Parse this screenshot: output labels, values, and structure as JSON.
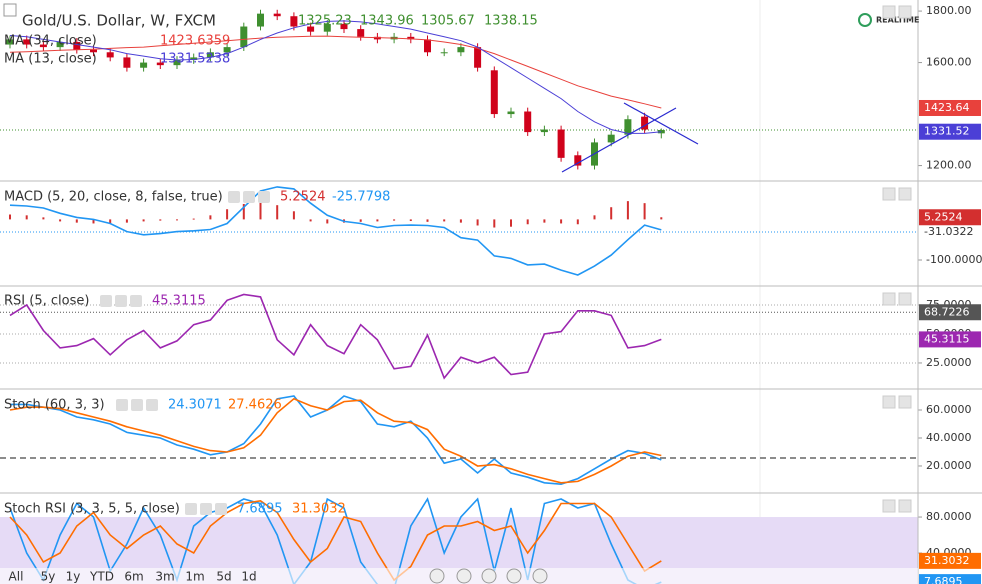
{
  "badge": "REALTIME",
  "toolbar": {
    "ranges": [
      "All",
      "5y",
      "1y",
      "YTD",
      "6m",
      "3m",
      "1m",
      "5d",
      "1d"
    ]
  },
  "chart_data": [
    {
      "type": "candlestick",
      "title": "Gold/U.S. Dollar, W, FXCM",
      "open": [
        1670,
        1690,
        1670,
        1660,
        1680,
        1650,
        1640,
        1620,
        1580,
        1600,
        1590,
        1610,
        1620,
        1640,
        1660,
        1740,
        1790,
        1780,
        1740,
        1720,
        1750,
        1730,
        1700,
        1690,
        1700,
        1690,
        1640,
        1640,
        1660,
        1570,
        1400,
        1410,
        1330,
        1340,
        1240,
        1200,
        1290,
        1320,
        1390,
        1325.23
      ],
      "high": [
        1705,
        1705,
        1685,
        1695,
        1695,
        1665,
        1655,
        1635,
        1615,
        1615,
        1625,
        1635,
        1655,
        1675,
        1755,
        1805,
        1805,
        1795,
        1755,
        1765,
        1765,
        1745,
        1715,
        1715,
        1715,
        1705,
        1655,
        1675,
        1675,
        1585,
        1425,
        1425,
        1355,
        1355,
        1255,
        1305,
        1335,
        1395,
        1405,
        1343.96
      ],
      "low": [
        1655,
        1655,
        1645,
        1645,
        1635,
        1625,
        1605,
        1565,
        1565,
        1575,
        1575,
        1595,
        1605,
        1625,
        1645,
        1725,
        1765,
        1725,
        1705,
        1705,
        1715,
        1685,
        1675,
        1675,
        1675,
        1625,
        1625,
        1625,
        1565,
        1385,
        1385,
        1315,
        1315,
        1215,
        1185,
        1185,
        1275,
        1305,
        1325,
        1305.67
      ],
      "close": [
        1690,
        1670,
        1660,
        1680,
        1650,
        1640,
        1620,
        1580,
        1600,
        1590,
        1610,
        1620,
        1640,
        1660,
        1740,
        1790,
        1780,
        1740,
        1720,
        1750,
        1730,
        1700,
        1690,
        1700,
        1690,
        1640,
        1640,
        1660,
        1580,
        1400,
        1410,
        1330,
        1340,
        1230,
        1200,
        1290,
        1320,
        1380,
        1340,
        1338.15
      ],
      "up_color": "#3f8f2f",
      "down_color": "#d0021b",
      "ylim": [
        1144,
        1843
      ],
      "yticks": [
        {
          "value": 1800,
          "label": "1800.00"
        },
        {
          "value": 1600,
          "label": "1600.00"
        },
        {
          "value": 1200,
          "label": "1200.00"
        }
      ],
      "series": [
        {
          "name": "MA (34, close)",
          "color": "#e8413c",
          "tag": true,
          "last_label": "1423.64",
          "values": [
            1640,
            1642,
            1645,
            1648,
            1650,
            1652,
            1655,
            1658,
            1660,
            1665,
            1670,
            1675,
            1680,
            1685,
            1690,
            1695,
            1698,
            1700,
            1702,
            1703,
            1700,
            1698,
            1697,
            1695,
            1692,
            1688,
            1680,
            1670,
            1655,
            1635,
            1610,
            1585,
            1560,
            1535,
            1510,
            1490,
            1470,
            1455,
            1440,
            1423.6359
          ]
        },
        {
          "name": "MA (13, close)",
          "color": "#4b3fd6",
          "tag": true,
          "last_label": "1331.52",
          "values": [
            1705,
            1700,
            1690,
            1680,
            1670,
            1660,
            1650,
            1635,
            1625,
            1615,
            1610,
            1612,
            1620,
            1635,
            1660,
            1690,
            1715,
            1735,
            1750,
            1760,
            1762,
            1758,
            1750,
            1740,
            1730,
            1715,
            1700,
            1685,
            1660,
            1620,
            1580,
            1540,
            1500,
            1460,
            1410,
            1370,
            1340,
            1325,
            1325,
            1331.5238
          ]
        }
      ]
    },
    {
      "type": "macd",
      "title": "MACD (5, 20, close, 8, false, true)",
      "ylim": [
        -161.6,
        92.1
      ],
      "yticks": [
        {
          "value": -100,
          "label": "-100.0000"
        }
      ],
      "ref_value": -31.0322,
      "series": [
        {
          "kind": "histogram",
          "color": "#d32f2f",
          "tag": true,
          "values": [
            12,
            10,
            5,
            -5,
            -8,
            -10,
            -10,
            -8,
            -5,
            -3,
            -2,
            2,
            10,
            25,
            38,
            42,
            35,
            20,
            -5,
            -10,
            -8,
            -6,
            -5,
            -3,
            -4,
            -6,
            -5,
            -8,
            -15,
            -20,
            -18,
            -12,
            -8,
            -10,
            -12,
            10,
            30,
            45,
            40,
            5.2524
          ]
        },
        {
          "kind": "line",
          "color": "#2196f3",
          "values": [
            35,
            33,
            28,
            15,
            5,
            0,
            -10,
            -30,
            -38,
            -35,
            -30,
            -28,
            -25,
            -10,
            30,
            70,
            80,
            75,
            40,
            10,
            -5,
            -10,
            -20,
            -15,
            -14,
            -15,
            -20,
            -45,
            -51,
            -90,
            -96,
            -112,
            -110,
            -125,
            -137,
            -115,
            -88,
            -50,
            -14,
            -25.7798
          ]
        }
      ]
    },
    {
      "type": "line",
      "title": "RSI (5, close)",
      "ylim": [
        3.4,
        90.5
      ],
      "grid": true,
      "yticks": [
        {
          "value": 25,
          "label": "25.0000"
        },
        {
          "value": 50,
          "label": "50.0000"
        },
        {
          "value": 75,
          "label": "75.0000"
        }
      ],
      "ref_value": 68.7226,
      "ref_color": "#555555",
      "series": [
        {
          "color": "#9c27b0",
          "tag": true,
          "values": [
            66,
            75,
            53,
            38,
            40,
            46,
            32,
            45,
            53,
            38,
            44,
            58,
            62,
            79,
            84,
            82,
            45,
            32,
            58,
            40,
            33,
            58,
            45,
            20,
            22,
            49,
            12,
            30,
            25,
            30,
            15,
            17,
            50,
            52,
            70,
            70,
            66,
            38,
            40,
            45.3115
          ]
        }
      ]
    },
    {
      "type": "line",
      "title": "Stoch (60, 3, 3)",
      "ylim": [
        1.4,
        74.3
      ],
      "yticks": [
        {
          "value": 20,
          "label": "20.0000"
        },
        {
          "value": 40,
          "label": "40.0000"
        },
        {
          "value": 60,
          "label": "60.0000"
        }
      ],
      "series": [
        {
          "color": "#2196f3",
          "values": [
            64,
            64,
            62,
            60,
            55,
            53,
            50,
            44,
            42,
            40,
            35,
            32,
            28,
            30,
            36,
            50,
            68,
            70,
            55,
            60,
            70,
            66,
            50,
            48,
            52,
            40,
            22,
            25,
            15,
            25,
            15,
            12,
            8,
            7,
            11,
            18,
            25,
            31,
            29,
            24.3071
          ]
        },
        {
          "color": "#ff6d00",
          "values": [
            60,
            62,
            62,
            61,
            58,
            55,
            52,
            48,
            45,
            42,
            38,
            34,
            31,
            30,
            33,
            42,
            58,
            68,
            63,
            60,
            66,
            67,
            58,
            52,
            51,
            46,
            32,
            27,
            20,
            21,
            18,
            14,
            11,
            8,
            9,
            14,
            20,
            27,
            30,
            27.4626
          ]
        }
      ]
    },
    {
      "type": "line",
      "title": "Stoch RSI (3, 3, 5, 5, close)",
      "ylim": [
        5.6,
        105.6
      ],
      "band_color": "#e6dbf6",
      "yticks": [
        {
          "value": 40,
          "label": "40.0000"
        },
        {
          "value": 80,
          "label": "80.0000"
        }
      ],
      "series": [
        {
          "color": "#2196f3",
          "tag": true,
          "values": [
            90,
            40,
            10,
            60,
            95,
            80,
            20,
            50,
            90,
            60,
            10,
            70,
            85,
            90,
            100,
            95,
            60,
            5,
            30,
            100,
            90,
            30,
            5,
            0,
            70,
            100,
            40,
            80,
            100,
            20,
            90,
            10,
            95,
            100,
            90,
            95,
            50,
            10,
            0,
            7.6895
          ]
        },
        {
          "color": "#ff6d00",
          "tag": true,
          "values": [
            80,
            60,
            30,
            40,
            70,
            85,
            60,
            45,
            60,
            70,
            50,
            40,
            70,
            85,
            95,
            98,
            85,
            55,
            30,
            45,
            80,
            75,
            40,
            10,
            25,
            60,
            70,
            70,
            75,
            65,
            70,
            40,
            65,
            95,
            95,
            95,
            80,
            50,
            20,
            31.3032
          ]
        }
      ]
    }
  ]
}
